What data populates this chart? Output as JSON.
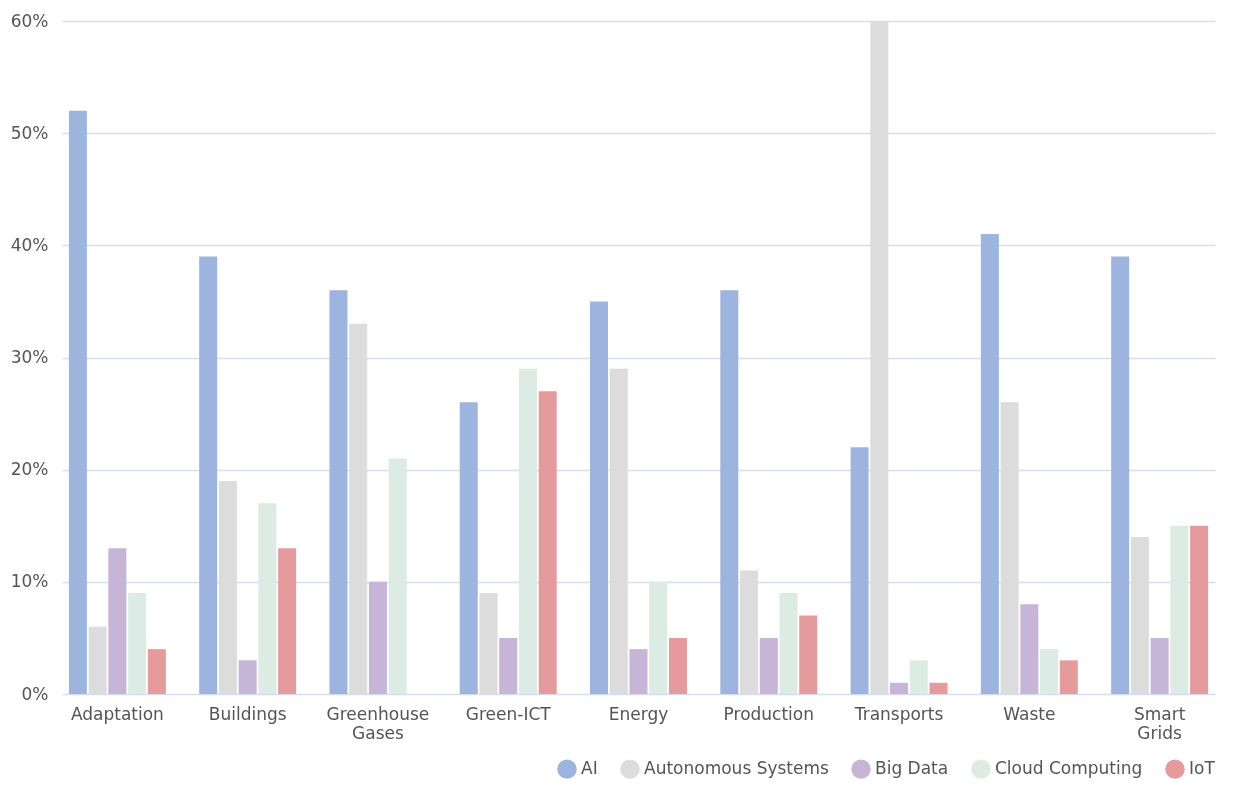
{
  "chart_data": {
    "type": "bar",
    "categories": [
      "Adaptation",
      "Buildings",
      "Greenhouse Gases",
      "Green-ICT",
      "Energy",
      "Production",
      "Transports",
      "Waste",
      "Smart Grids"
    ],
    "series": [
      {
        "name": "AI",
        "color": "#9db5de",
        "values": [
          52,
          39,
          36,
          26,
          35,
          36,
          22,
          41,
          39
        ]
      },
      {
        "name": "Autonomous Systems",
        "color": "#dcdcdc",
        "values": [
          6,
          19,
          33,
          9,
          29,
          11,
          60,
          26,
          14
        ]
      },
      {
        "name": "Big Data",
        "color": "#c7b5d8",
        "values": [
          13,
          3,
          10,
          5,
          4,
          5,
          1,
          8,
          5
        ]
      },
      {
        "name": "Cloud Computing",
        "color": "#dcebe3",
        "values": [
          9,
          17,
          21,
          29,
          10,
          9,
          3,
          4,
          15
        ]
      },
      {
        "name": "IoT",
        "color": "#e59a9c",
        "values": [
          4,
          13,
          null,
          27,
          5,
          7,
          1,
          3,
          15
        ]
      }
    ],
    "ylim": [
      0,
      60
    ],
    "yticks": [
      {
        "value": 0,
        "label": "0%"
      },
      {
        "value": 10,
        "label": "10%"
      },
      {
        "value": 20,
        "label": "20%"
      },
      {
        "value": 30,
        "label": "30%"
      },
      {
        "value": 40,
        "label": "40%"
      },
      {
        "value": 50,
        "label": "50%"
      },
      {
        "value": 60,
        "label": "60%"
      }
    ],
    "grid": "y",
    "legend": "bottom right"
  }
}
